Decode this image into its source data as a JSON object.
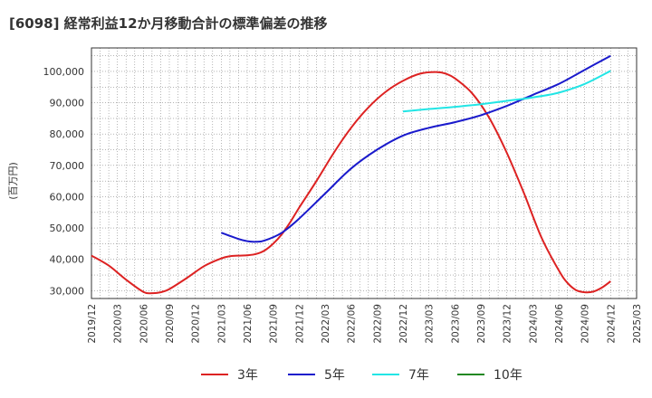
{
  "chart_data": {
    "type": "line",
    "title": "[6098]  経常利益12か月移動合計の標準偏差の推移",
    "ylabel": "(百万円)",
    "xlabel": "",
    "ylim": [
      27500,
      107500
    ],
    "yticks": [
      30000,
      40000,
      50000,
      60000,
      70000,
      80000,
      90000,
      100000
    ],
    "ytick_labels": [
      "30,000",
      "40,000",
      "50,000",
      "60,000",
      "70,000",
      "80,000",
      "90,000",
      "100,000"
    ],
    "xticks": [
      "2019/12",
      "2020/03",
      "2020/06",
      "2020/09",
      "2020/12",
      "2021/03",
      "2021/06",
      "2021/09",
      "2021/12",
      "2022/03",
      "2022/06",
      "2022/09",
      "2022/12",
      "2023/03",
      "2023/06",
      "2023/09",
      "2023/12",
      "2024/03",
      "2024/06",
      "2024/09",
      "2024/12",
      "2025/03"
    ],
    "xlim": [
      "2019/12",
      "2025/03"
    ],
    "grid": true,
    "legend_position": "bottom",
    "series": [
      {
        "name": "3年",
        "color": "#dd2222",
        "points": [
          [
            "2019/12",
            41200
          ],
          [
            "2020/02",
            38000
          ],
          [
            "2020/04",
            33500
          ],
          [
            "2020/06",
            29600
          ],
          [
            "2020/07",
            29200
          ],
          [
            "2020/08",
            29500
          ],
          [
            "2020/09",
            30500
          ],
          [
            "2020/11",
            34000
          ],
          [
            "2021/01",
            37800
          ],
          [
            "2021/03",
            40300
          ],
          [
            "2021/04",
            41000
          ],
          [
            "2021/05",
            41200
          ],
          [
            "2021/06",
            41300
          ],
          [
            "2021/07",
            41700
          ],
          [
            "2021/08",
            42800
          ],
          [
            "2021/09",
            45000
          ],
          [
            "2021/10",
            48000
          ],
          [
            "2021/11",
            52000
          ],
          [
            "2021/12",
            56500
          ],
          [
            "2022/02",
            65000
          ],
          [
            "2022/04",
            74000
          ],
          [
            "2022/06",
            82000
          ],
          [
            "2022/08",
            88500
          ],
          [
            "2022/10",
            93500
          ],
          [
            "2022/12",
            97000
          ],
          [
            "2023/02",
            99300
          ],
          [
            "2023/04",
            99800
          ],
          [
            "2023/05",
            99200
          ],
          [
            "2023/06",
            97800
          ],
          [
            "2023/08",
            93000
          ],
          [
            "2023/10",
            85000
          ],
          [
            "2023/12",
            74000
          ],
          [
            "2024/02",
            61000
          ],
          [
            "2024/04",
            47000
          ],
          [
            "2024/06",
            36500
          ],
          [
            "2024/07",
            32500
          ],
          [
            "2024/08",
            30200
          ],
          [
            "2024/09",
            29500
          ],
          [
            "2024/10",
            29700
          ],
          [
            "2024/11",
            31000
          ],
          [
            "2024/12",
            33000
          ]
        ]
      },
      {
        "name": "5年",
        "color": "#1a1acc",
        "points": [
          [
            "2021/03",
            48500
          ],
          [
            "2021/05",
            46500
          ],
          [
            "2021/06",
            45800
          ],
          [
            "2021/07",
            45600
          ],
          [
            "2021/08",
            46000
          ],
          [
            "2021/10",
            48500
          ],
          [
            "2021/12",
            53000
          ],
          [
            "2022/03",
            61000
          ],
          [
            "2022/06",
            69000
          ],
          [
            "2022/09",
            75000
          ],
          [
            "2022/12",
            79500
          ],
          [
            "2023/03",
            82000
          ],
          [
            "2023/06",
            83800
          ],
          [
            "2023/09",
            86000
          ],
          [
            "2023/12",
            89000
          ],
          [
            "2024/03",
            92500
          ],
          [
            "2024/06",
            96000
          ],
          [
            "2024/09",
            100500
          ],
          [
            "2024/12",
            105000
          ]
        ]
      },
      {
        "name": "7年",
        "color": "#22e5e5",
        "points": [
          [
            "2022/12",
            87200
          ],
          [
            "2023/03",
            88000
          ],
          [
            "2023/06",
            88700
          ],
          [
            "2023/09",
            89500
          ],
          [
            "2023/12",
            90600
          ],
          [
            "2024/03",
            91700
          ],
          [
            "2024/06",
            93200
          ],
          [
            "2024/09",
            96000
          ],
          [
            "2024/12",
            100200
          ]
        ]
      },
      {
        "name": "10年",
        "color": "#228822",
        "points": []
      }
    ]
  }
}
